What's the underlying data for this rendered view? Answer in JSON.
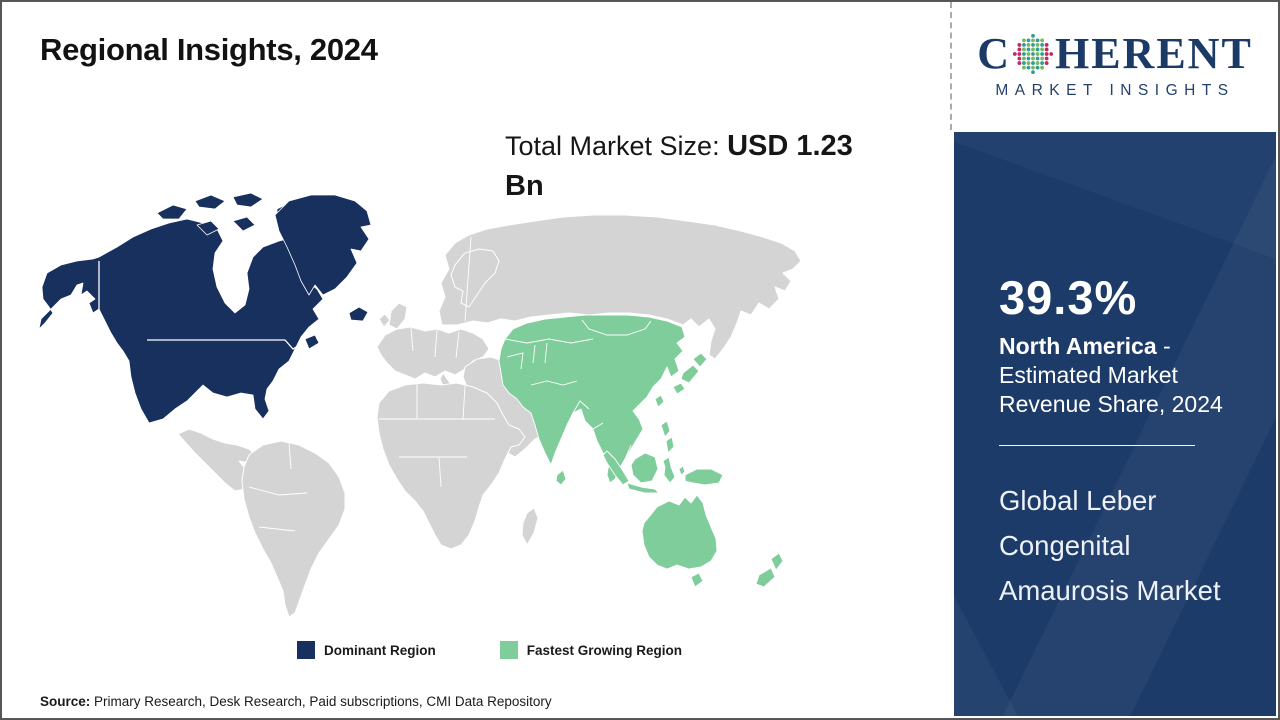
{
  "header": {
    "title": "Regional Insights, 2024"
  },
  "logo": {
    "brand_c": "C",
    "brand_rest": "HERENT",
    "tagline": "MARKET INSIGHTS",
    "dot_colors": [
      "#2f9e9b",
      "#7cb65a",
      "#bf2a63"
    ]
  },
  "market_size": {
    "label": "Total Market Size: ",
    "value": "USD 1.23 Bn"
  },
  "map": {
    "legend": [
      {
        "label": "Dominant Region",
        "key": "dominant"
      },
      {
        "label": "Fastest Growing Region",
        "key": "fastest_growing"
      }
    ]
  },
  "chart_data": {
    "type": "choropleth_world_map",
    "title": "Regional Insights, 2024",
    "total_market_size": "USD 1.23 Bn",
    "regions": [
      {
        "name": "North America",
        "status": "Dominant Region",
        "share_2024": "39.3%"
      },
      {
        "name": "Asia Pacific",
        "status": "Fastest Growing Region"
      }
    ]
  },
  "sidebar": {
    "share_value": "39.3%",
    "share_region": "North America",
    "share_suffix": " - Estimated Market Revenue Share, 2024",
    "market_name": "Global Leber Congenital Amaurosis Market"
  },
  "source": {
    "label": "Source:",
    "text": " Primary Research, Desk Research, Paid subscriptions, CMI Data Repository"
  },
  "colors": {
    "dominant": "#17305e",
    "fastest_growing": "#7ecd9b",
    "other_land": "#d4d4d4",
    "sidebar_bg": "#1c3b69",
    "brand_navy": "#1b3a66"
  }
}
